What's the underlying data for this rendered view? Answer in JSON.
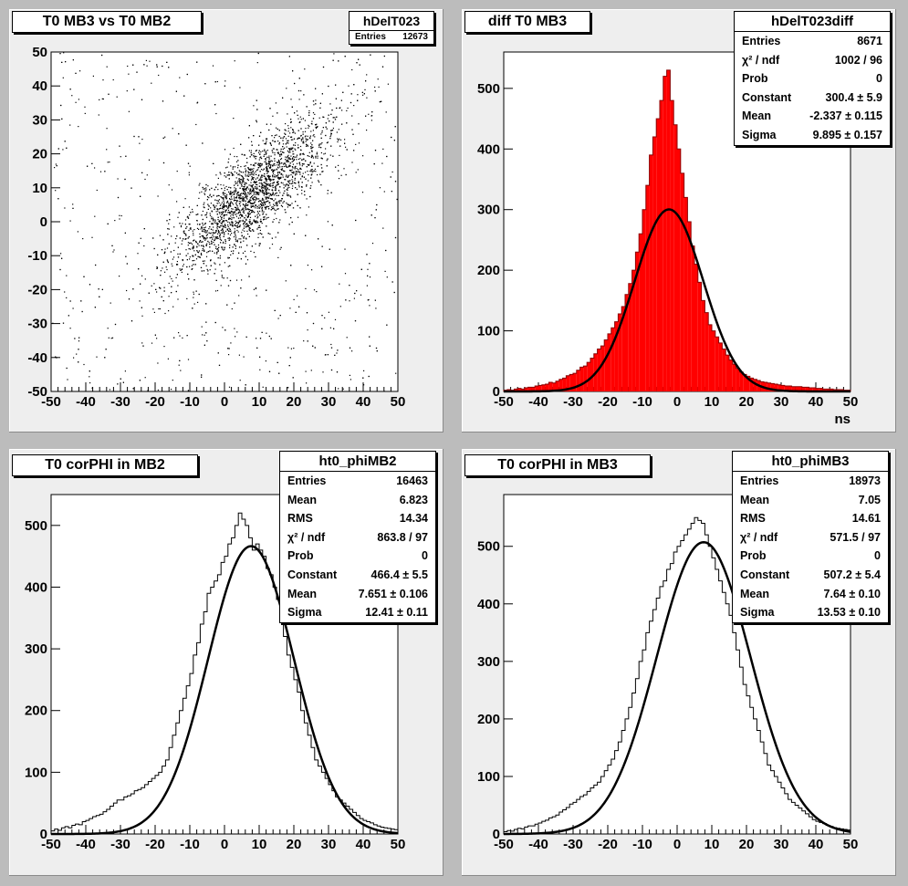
{
  "colors": {
    "fill_red": "#ff0000",
    "axis": "#000000",
    "pad_bg": "#eeeeee",
    "canvas_bg": "#bcbcbc"
  },
  "pads": [
    {
      "title": "T0 MB3 vs T0 MB2",
      "stats_title": "hDelT023",
      "stats": [
        {
          "label": "Entries",
          "value": "12673"
        }
      ]
    },
    {
      "title": "diff T0 MB3",
      "stats_title": "hDelT023diff",
      "xaxis_label": "ns",
      "stats": [
        {
          "label": "Entries",
          "value": "8671"
        },
        {
          "label": "χ² / ndf",
          "value": "1002 / 96"
        },
        {
          "label": "Prob",
          "value": "0"
        },
        {
          "label": "Constant",
          "value": "300.4 ± 5.9"
        },
        {
          "label": "Mean",
          "value": "-2.337 ± 0.115"
        },
        {
          "label": "Sigma",
          "value": "9.895 ± 0.157"
        }
      ]
    },
    {
      "title": "T0 corPHI in MB2",
      "stats_title": "ht0_phiMB2",
      "stats": [
        {
          "label": "Entries",
          "value": "16463"
        },
        {
          "label": "Mean",
          "value": "6.823"
        },
        {
          "label": "RMS",
          "value": "14.34"
        },
        {
          "label": "χ² / ndf",
          "value": "863.8 / 97"
        },
        {
          "label": "Prob",
          "value": "0"
        },
        {
          "label": "Constant",
          "value": "466.4 ± 5.5"
        },
        {
          "label": "Mean",
          "value": "7.651 ± 0.106"
        },
        {
          "label": "Sigma",
          "value": "12.41 ± 0.11"
        }
      ]
    },
    {
      "title": "T0 corPHI in MB3",
      "stats_title": "ht0_phiMB3",
      "stats": [
        {
          "label": "Entries",
          "value": "18973"
        },
        {
          "label": "Mean",
          "value": "7.05"
        },
        {
          "label": "RMS",
          "value": "14.61"
        },
        {
          "label": "χ² / ndf",
          "value": "571.5 / 97"
        },
        {
          "label": "Prob",
          "value": "0"
        },
        {
          "label": "Constant",
          "value": "507.2 ± 5.4"
        },
        {
          "label": "Mean",
          "value": "7.64 ± 0.10"
        },
        {
          "label": "Sigma",
          "value": "13.53 ± 0.10"
        }
      ]
    }
  ],
  "chart_data": [
    {
      "type": "scatter",
      "title": "T0 MB3 vs T0 MB2",
      "xlim": [
        -50,
        50
      ],
      "ylim": [
        -50,
        50
      ],
      "xticks": [
        "-50",
        "-40",
        "-30",
        "-20",
        "-10",
        "0",
        "10",
        "20",
        "30",
        "40",
        "50"
      ],
      "yticks": [
        "-50",
        "-40",
        "-30",
        "-20",
        "-10",
        "0",
        "10",
        "20",
        "30",
        "40",
        "50"
      ],
      "entries": 12673,
      "cluster": {
        "x_center": 8,
        "y_center": 8,
        "correlation": "positive"
      }
    },
    {
      "type": "bar",
      "title": "diff T0 MB3",
      "xlabel": "ns",
      "xlim": [
        -50,
        50
      ],
      "ylim": [
        0,
        560
      ],
      "xticks": [
        "-50",
        "-40",
        "-30",
        "-20",
        "-10",
        "0",
        "10",
        "20",
        "30",
        "40",
        "50"
      ],
      "yticks": [
        "0",
        "100",
        "200",
        "300",
        "400",
        "500"
      ],
      "fit": {
        "function": "gaus",
        "constant": 300.4,
        "mean": -2.337,
        "sigma": 9.895
      },
      "bin_width": 1,
      "bin_centers": [
        -49.5,
        -48.5,
        -47.5,
        -46.5,
        -45.5,
        -44.5,
        -43.5,
        -42.5,
        -41.5,
        -40.5,
        -39.5,
        -38.5,
        -37.5,
        -36.5,
        -35.5,
        -34.5,
        -33.5,
        -32.5,
        -31.5,
        -30.5,
        -29.5,
        -28.5,
        -27.5,
        -26.5,
        -25.5,
        -24.5,
        -23.5,
        -22.5,
        -21.5,
        -20.5,
        -19.5,
        -18.5,
        -17.5,
        -16.5,
        -15.5,
        -14.5,
        -13.5,
        -12.5,
        -11.5,
        -10.5,
        -9.5,
        -8.5,
        -7.5,
        -6.5,
        -5.5,
        -4.5,
        -3.5,
        -2.5,
        -1.5,
        -0.5,
        0.5,
        1.5,
        2.5,
        3.5,
        4.5,
        5.5,
        6.5,
        7.5,
        8.5,
        9.5,
        10.5,
        11.5,
        12.5,
        13.5,
        14.5,
        15.5,
        16.5,
        17.5,
        18.5,
        19.5,
        20.5,
        21.5,
        22.5,
        23.5,
        24.5,
        25.5,
        26.5,
        27.5,
        28.5,
        29.5,
        30.5,
        31.5,
        32.5,
        33.5,
        34.5,
        35.5,
        36.5,
        37.5,
        38.5,
        39.5,
        40.5,
        41.5,
        42.5,
        43.5,
        44.5,
        45.5,
        46.5,
        47.5,
        48.5,
        49.5
      ],
      "values": [
        2,
        3,
        2,
        4,
        5,
        4,
        6,
        7,
        7,
        9,
        10,
        11,
        12,
        15,
        14,
        17,
        20,
        22,
        26,
        28,
        30,
        35,
        40,
        42,
        48,
        55,
        62,
        70,
        75,
        85,
        95,
        105,
        115,
        128,
        140,
        160,
        178,
        200,
        230,
        260,
        300,
        340,
        390,
        420,
        450,
        480,
        520,
        530,
        480,
        440,
        400,
        360,
        320,
        280,
        240,
        210,
        180,
        150,
        130,
        110,
        100,
        90,
        80,
        70,
        60,
        52,
        45,
        38,
        32,
        28,
        25,
        22,
        20,
        18,
        16,
        15,
        14,
        13,
        12,
        11,
        10,
        9,
        9,
        8,
        8,
        8,
        7,
        7,
        6,
        6,
        5,
        5,
        4,
        4,
        4,
        3,
        3,
        3,
        2,
        2
      ]
    },
    {
      "type": "bar",
      "title": "T0 corPHI in MB2",
      "xlim": [
        -50,
        50
      ],
      "ylim": [
        0,
        550
      ],
      "xticks": [
        "-50",
        "-40",
        "-30",
        "-20",
        "-10",
        "0",
        "10",
        "20",
        "30",
        "40",
        "50"
      ],
      "yticks": [
        "0",
        "100",
        "200",
        "300",
        "400",
        "500"
      ],
      "fit": {
        "function": "gaus",
        "constant": 466.4,
        "mean": 7.651,
        "sigma": 12.41
      },
      "bin_width": 1,
      "bin_centers": [
        -49.5,
        -48.5,
        -47.5,
        -46.5,
        -45.5,
        -44.5,
        -43.5,
        -42.5,
        -41.5,
        -40.5,
        -39.5,
        -38.5,
        -37.5,
        -36.5,
        -35.5,
        -34.5,
        -33.5,
        -32.5,
        -31.5,
        -30.5,
        -29.5,
        -28.5,
        -27.5,
        -26.5,
        -25.5,
        -24.5,
        -23.5,
        -22.5,
        -21.5,
        -20.5,
        -19.5,
        -18.5,
        -17.5,
        -16.5,
        -15.5,
        -14.5,
        -13.5,
        -12.5,
        -11.5,
        -10.5,
        -9.5,
        -8.5,
        -7.5,
        -6.5,
        -5.5,
        -4.5,
        -3.5,
        -2.5,
        -1.5,
        -0.5,
        0.5,
        1.5,
        2.5,
        3.5,
        4.5,
        5.5,
        6.5,
        7.5,
        8.5,
        9.5,
        10.5,
        11.5,
        12.5,
        13.5,
        14.5,
        15.5,
        16.5,
        17.5,
        18.5,
        19.5,
        20.5,
        21.5,
        22.5,
        23.5,
        24.5,
        25.5,
        26.5,
        27.5,
        28.5,
        29.5,
        30.5,
        31.5,
        32.5,
        33.5,
        34.5,
        35.5,
        36.5,
        37.5,
        38.5,
        39.5,
        40.5,
        41.5,
        42.5,
        43.5,
        44.5,
        45.5,
        46.5,
        47.5,
        48.5,
        49.5
      ],
      "values": [
        5,
        8,
        6,
        10,
        12,
        10,
        14,
        16,
        15,
        20,
        22,
        25,
        28,
        30,
        32,
        36,
        40,
        45,
        50,
        55,
        55,
        60,
        62,
        65,
        70,
        72,
        75,
        80,
        85,
        90,
        95,
        100,
        110,
        120,
        140,
        160,
        180,
        200,
        220,
        240,
        260,
        290,
        310,
        340,
        360,
        390,
        400,
        410,
        420,
        440,
        450,
        470,
        480,
        500,
        520,
        510,
        500,
        480,
        460,
        470,
        460,
        450,
        430,
        420,
        400,
        380,
        350,
        320,
        290,
        270,
        250,
        230,
        200,
        180,
        160,
        140,
        120,
        110,
        100,
        90,
        80,
        70,
        60,
        55,
        50,
        45,
        40,
        35,
        30,
        25,
        22,
        20,
        18,
        15,
        13,
        11,
        10,
        9,
        8,
        7
      ]
    },
    {
      "type": "bar",
      "title": "T0 corPHI in MB3",
      "xlim": [
        -50,
        50
      ],
      "ylim": [
        0,
        590
      ],
      "xticks": [
        "-50",
        "-40",
        "-30",
        "-20",
        "-10",
        "0",
        "10",
        "20",
        "30",
        "40",
        "50"
      ],
      "yticks": [
        "0",
        "100",
        "200",
        "300",
        "400",
        "500"
      ],
      "fit": {
        "function": "gaus",
        "constant": 507.2,
        "mean": 7.64,
        "sigma": 13.53
      },
      "bin_width": 1,
      "bin_centers": [
        -49.5,
        -48.5,
        -47.5,
        -46.5,
        -45.5,
        -44.5,
        -43.5,
        -42.5,
        -41.5,
        -40.5,
        -39.5,
        -38.5,
        -37.5,
        -36.5,
        -35.5,
        -34.5,
        -33.5,
        -32.5,
        -31.5,
        -30.5,
        -29.5,
        -28.5,
        -27.5,
        -26.5,
        -25.5,
        -24.5,
        -23.5,
        -22.5,
        -21.5,
        -20.5,
        -19.5,
        -18.5,
        -17.5,
        -16.5,
        -15.5,
        -14.5,
        -13.5,
        -12.5,
        -11.5,
        -10.5,
        -9.5,
        -8.5,
        -7.5,
        -6.5,
        -5.5,
        -4.5,
        -3.5,
        -2.5,
        -1.5,
        -0.5,
        0.5,
        1.5,
        2.5,
        3.5,
        4.5,
        5.5,
        6.5,
        7.5,
        8.5,
        9.5,
        10.5,
        11.5,
        12.5,
        13.5,
        14.5,
        15.5,
        16.5,
        17.5,
        18.5,
        19.5,
        20.5,
        21.5,
        22.5,
        23.5,
        24.5,
        25.5,
        26.5,
        27.5,
        28.5,
        29.5,
        30.5,
        31.5,
        32.5,
        33.5,
        34.5,
        35.5,
        36.5,
        37.5,
        38.5,
        39.5,
        40.5,
        41.5,
        42.5,
        43.5,
        44.5,
        45.5,
        46.5,
        47.5,
        48.5,
        49.5
      ],
      "values": [
        4,
        6,
        5,
        8,
        10,
        9,
        12,
        14,
        14,
        17,
        19,
        22,
        24,
        28,
        30,
        33,
        38,
        42,
        46,
        52,
        55,
        60,
        65,
        68,
        74,
        80,
        85,
        90,
        100,
        110,
        120,
        130,
        145,
        160,
        180,
        200,
        220,
        245,
        270,
        300,
        320,
        350,
        370,
        390,
        410,
        430,
        440,
        460,
        470,
        490,
        500,
        510,
        520,
        530,
        540,
        550,
        545,
        540,
        520,
        500,
        480,
        460,
        440,
        420,
        400,
        380,
        350,
        320,
        290,
        260,
        240,
        220,
        200,
        180,
        160,
        140,
        120,
        110,
        100,
        90,
        80,
        70,
        60,
        55,
        50,
        45,
        40,
        35,
        30,
        25,
        22,
        20,
        18,
        15,
        13,
        11,
        10,
        9,
        8,
        7
      ]
    }
  ]
}
